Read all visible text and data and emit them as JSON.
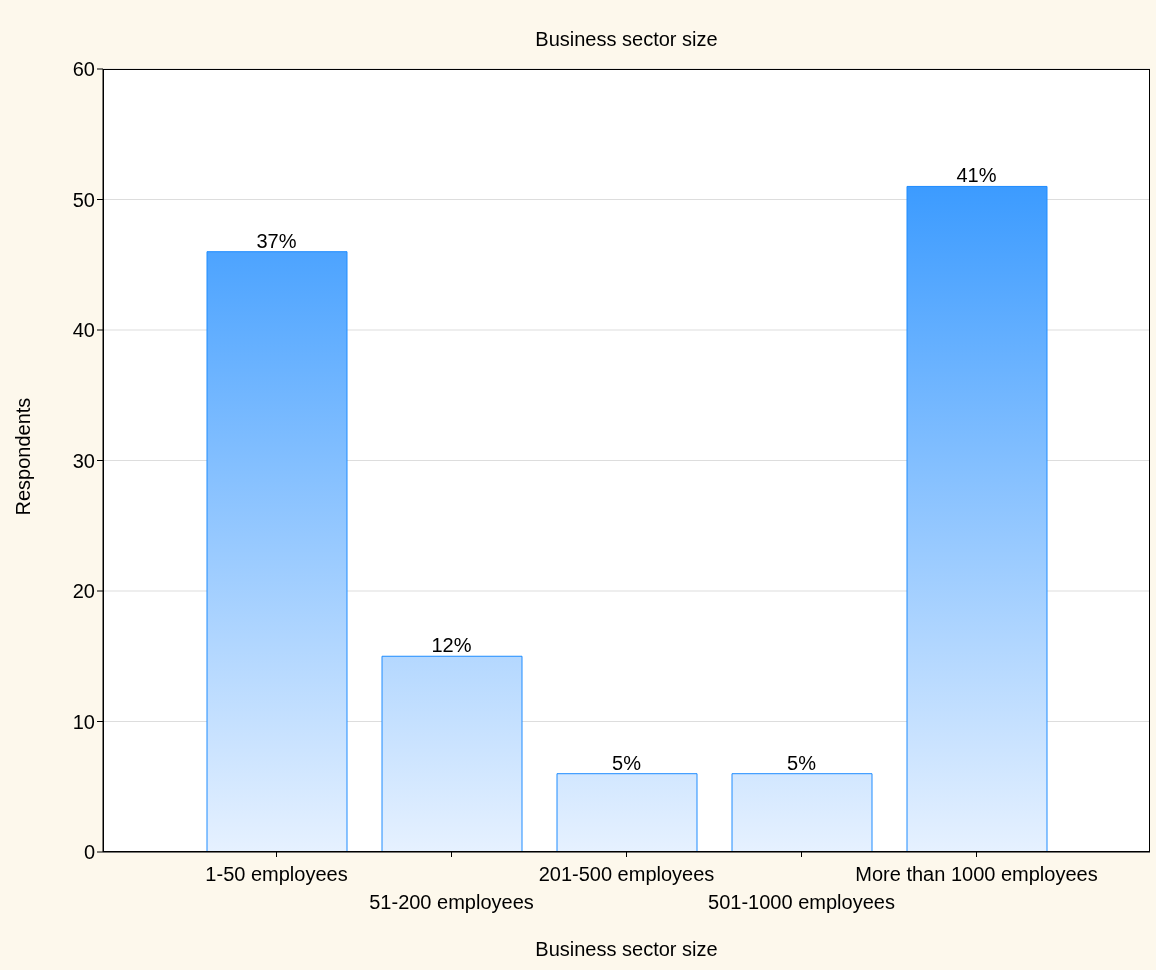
{
  "chart_data": {
    "type": "bar",
    "title": "Business sector size",
    "xlabel": "Business sector size",
    "ylabel": "Respondents",
    "categories": [
      "1-50 employees",
      "51-200 employees",
      "201-500 employees",
      "501-1000 employees",
      "More than 1000 employees"
    ],
    "values": [
      46,
      15,
      6,
      6,
      51
    ],
    "color": "#1e8cff",
    "annotations": [
      {
        "text": "37%",
        "x": "1-50 employees",
        "y": 46
      },
      {
        "text": "12%",
        "x": "51-200 employees",
        "y": 15
      },
      {
        "text": "5%",
        "x": "201-500 employees",
        "y": 6
      },
      {
        "text": "5%",
        "x": "501-1000 employees",
        "y": 6
      },
      {
        "text": "41%",
        "x": "More than 1000 employees",
        "y": 51
      }
    ],
    "ylim": [
      0,
      60
    ],
    "yticks": [
      0,
      10,
      20,
      30,
      40,
      50,
      60
    ],
    "grid": "y"
  }
}
